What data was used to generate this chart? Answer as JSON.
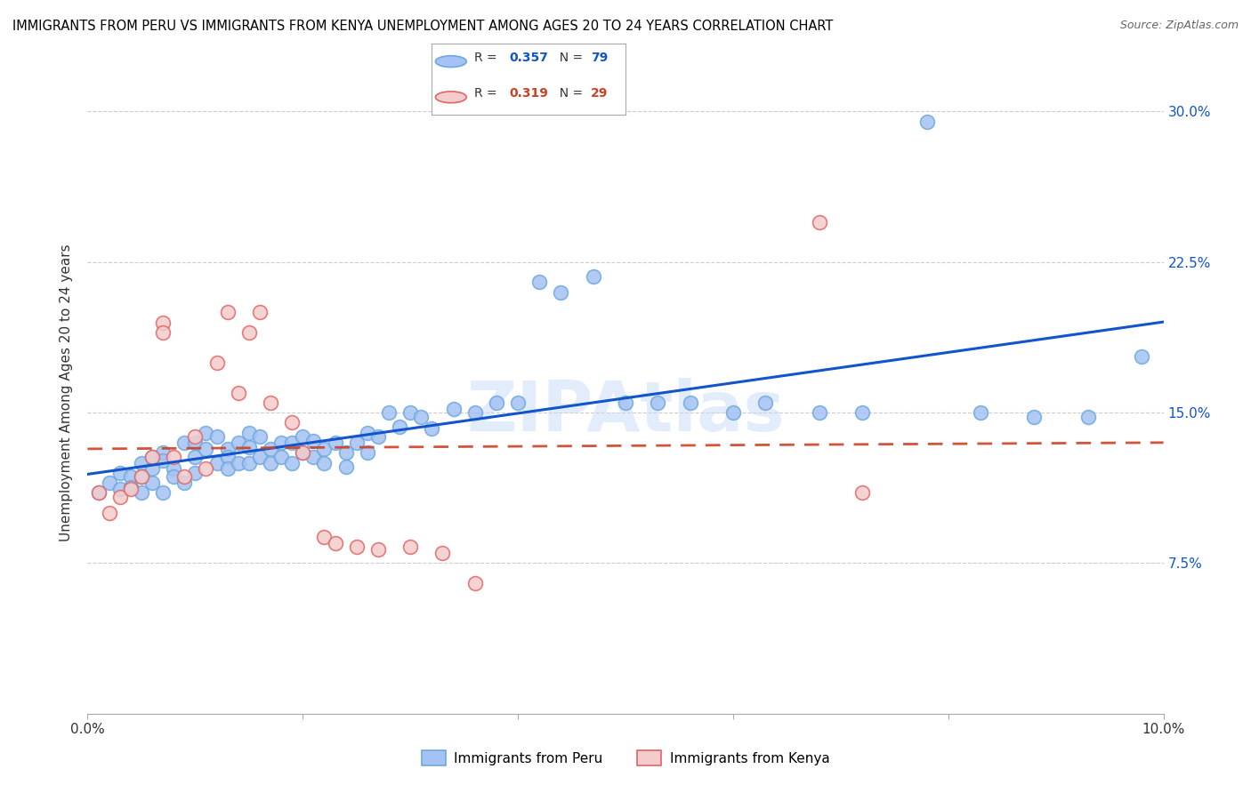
{
  "title": "IMMIGRANTS FROM PERU VS IMMIGRANTS FROM KENYA UNEMPLOYMENT AMONG AGES 20 TO 24 YEARS CORRELATION CHART",
  "source": "Source: ZipAtlas.com",
  "ylabel": "Unemployment Among Ages 20 to 24 years",
  "xlim": [
    0.0,
    0.1
  ],
  "ylim": [
    0.0,
    0.32
  ],
  "peru_color": "#a4c2f4",
  "peru_edge_color": "#6fa8dc",
  "kenya_color": "#f4cccc",
  "kenya_edge_color": "#e06666",
  "peru_line_color": "#1155cc",
  "kenya_line_color": "#cc4125",
  "kenya_line_style": "--",
  "peru_R": 0.357,
  "peru_N": 79,
  "kenya_R": 0.319,
  "kenya_N": 29,
  "legend_R_color_peru": "#1155cc",
  "legend_R_color_kenya": "#cc4125",
  "legend_N_color": "#1155cc",
  "legend_N_color_kenya": "#cc4125",
  "peru_x": [
    0.001,
    0.002,
    0.003,
    0.003,
    0.004,
    0.004,
    0.005,
    0.005,
    0.005,
    0.006,
    0.006,
    0.006,
    0.007,
    0.007,
    0.007,
    0.008,
    0.008,
    0.009,
    0.009,
    0.01,
    0.01,
    0.01,
    0.011,
    0.011,
    0.012,
    0.012,
    0.013,
    0.013,
    0.013,
    0.014,
    0.014,
    0.015,
    0.015,
    0.015,
    0.016,
    0.016,
    0.017,
    0.017,
    0.018,
    0.018,
    0.019,
    0.019,
    0.02,
    0.02,
    0.021,
    0.021,
    0.022,
    0.022,
    0.023,
    0.024,
    0.024,
    0.025,
    0.026,
    0.026,
    0.027,
    0.028,
    0.029,
    0.03,
    0.031,
    0.032,
    0.034,
    0.036,
    0.038,
    0.04,
    0.042,
    0.044,
    0.047,
    0.05,
    0.053,
    0.056,
    0.06,
    0.063,
    0.068,
    0.072,
    0.078,
    0.083,
    0.088,
    0.093,
    0.098
  ],
  "peru_y": [
    0.11,
    0.115,
    0.12,
    0.112,
    0.118,
    0.113,
    0.125,
    0.118,
    0.11,
    0.128,
    0.122,
    0.115,
    0.13,
    0.11,
    0.126,
    0.122,
    0.118,
    0.135,
    0.115,
    0.135,
    0.128,
    0.12,
    0.14,
    0.132,
    0.138,
    0.125,
    0.132,
    0.128,
    0.122,
    0.135,
    0.125,
    0.14,
    0.133,
    0.125,
    0.138,
    0.128,
    0.132,
    0.125,
    0.135,
    0.128,
    0.135,
    0.125,
    0.138,
    0.13,
    0.136,
    0.128,
    0.132,
    0.125,
    0.135,
    0.13,
    0.123,
    0.135,
    0.14,
    0.13,
    0.138,
    0.15,
    0.143,
    0.15,
    0.148,
    0.142,
    0.152,
    0.15,
    0.155,
    0.155,
    0.215,
    0.21,
    0.218,
    0.155,
    0.155,
    0.155,
    0.15,
    0.155,
    0.15,
    0.15,
    0.295,
    0.15,
    0.148,
    0.148,
    0.178
  ],
  "kenya_x": [
    0.001,
    0.002,
    0.003,
    0.004,
    0.005,
    0.006,
    0.007,
    0.007,
    0.008,
    0.009,
    0.01,
    0.011,
    0.012,
    0.013,
    0.014,
    0.015,
    0.016,
    0.017,
    0.019,
    0.02,
    0.022,
    0.023,
    0.025,
    0.027,
    0.03,
    0.033,
    0.036,
    0.068,
    0.072
  ],
  "kenya_y": [
    0.11,
    0.1,
    0.108,
    0.112,
    0.118,
    0.128,
    0.195,
    0.19,
    0.128,
    0.118,
    0.138,
    0.122,
    0.175,
    0.2,
    0.16,
    0.19,
    0.2,
    0.155,
    0.145,
    0.13,
    0.088,
    0.085,
    0.083,
    0.082,
    0.083,
    0.08,
    0.065,
    0.245,
    0.11
  ]
}
